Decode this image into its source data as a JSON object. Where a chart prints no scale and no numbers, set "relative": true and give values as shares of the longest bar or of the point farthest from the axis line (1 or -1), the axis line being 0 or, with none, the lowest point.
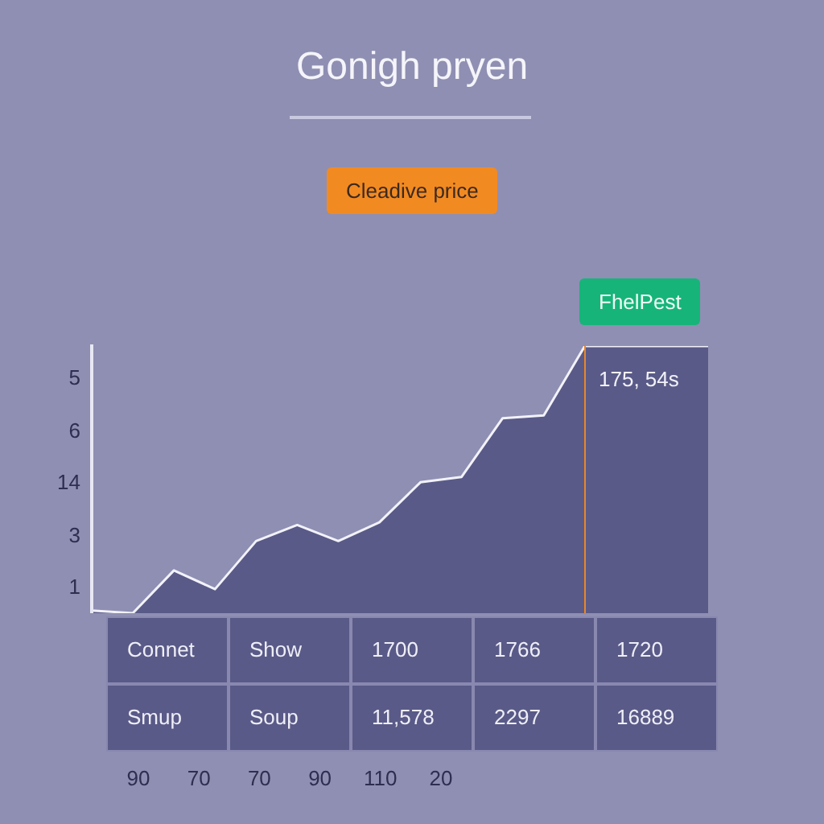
{
  "chart_data": {
    "type": "area",
    "title": "Gonigh pryen",
    "relative": true,
    "categories": [
      null,
      null,
      null,
      null,
      null,
      null,
      null,
      null,
      null,
      null,
      null,
      null,
      null,
      null,
      null,
      null
    ],
    "series": [
      {
        "color": "#5a5a88",
        "values": [
          0.01,
          0,
          0.16,
          0.09,
          0.27,
          0.33,
          0.27,
          0.34,
          0.49,
          0.51,
          0.73,
          0.74,
          1,
          1,
          1,
          1
        ]
      }
    ],
    "legend": false,
    "annotations": [
      "Cleadive price",
      "FhelPest",
      "175, 54s",
      "5",
      "6",
      "14",
      "3",
      "1",
      "90",
      "70",
      "70",
      "90",
      "110",
      "20",
      "Connet",
      "Show",
      "1700",
      "1766",
      "1720",
      "Smup",
      "Soup",
      "11,578",
      "2297",
      "16889"
    ]
  }
}
